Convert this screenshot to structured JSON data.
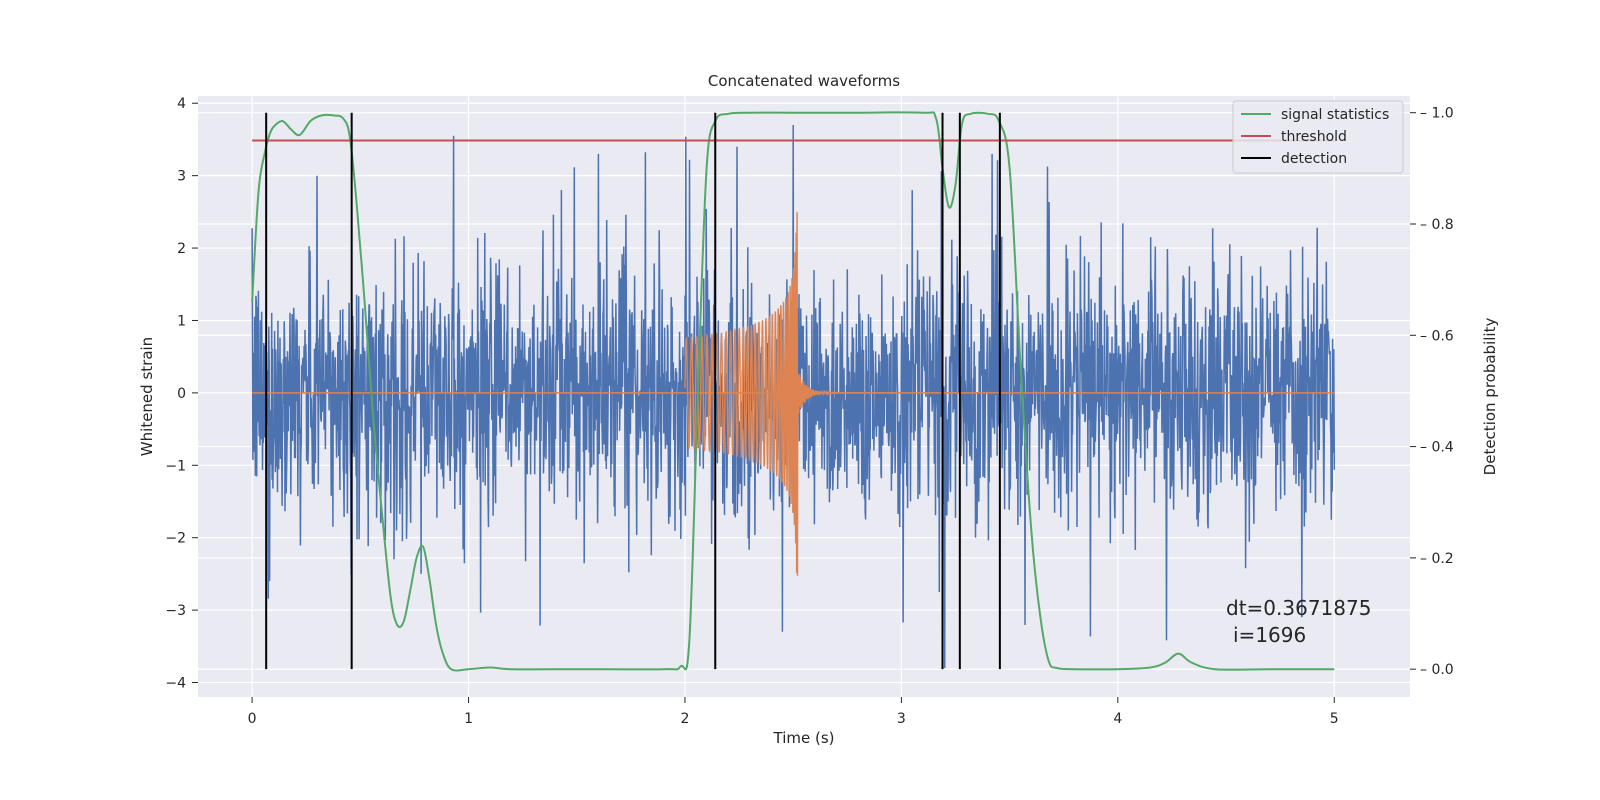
{
  "chart_data": {
    "type": "line",
    "title": "Concatenated waveforms",
    "xlabel": "Time (s)",
    "ylabel": "Whitened strain",
    "y2label": "Detection probability",
    "xlim": [
      -0.25,
      5.35
    ],
    "ylim": [
      -4.2,
      4.1
    ],
    "y2lim": [
      -0.05,
      1.03
    ],
    "xticks": [
      0,
      1,
      2,
      3,
      4,
      5
    ],
    "xtick_labels": [
      "0",
      "1",
      "2",
      "3",
      "4",
      "5"
    ],
    "yticks": [
      -4,
      -3,
      -2,
      -1,
      0,
      1,
      2,
      3,
      4
    ],
    "ytick_labels": [
      "−4",
      "−3",
      "−2",
      "−1",
      "0",
      "1",
      "2",
      "3",
      "4"
    ],
    "y2ticks": [
      0.0,
      0.2,
      0.4,
      0.6,
      0.8,
      1.0
    ],
    "y2tick_labels": [
      "0.0",
      "0.2",
      "0.4",
      "0.6",
      "0.8",
      "1.0"
    ],
    "grid": true,
    "legend_position": "top-right",
    "series": [
      {
        "name": "",
        "axis": "left",
        "color": "#4c72b0",
        "kind": "noise",
        "x_range": [
          0,
          5
        ],
        "amplitude": 1.05,
        "peaks": [
          [
            0.3,
            3.0
          ],
          [
            0.93,
            3.55
          ],
          [
            1.6,
            3.3
          ],
          [
            2.24,
            3.4
          ],
          [
            2.5,
            3.7
          ],
          [
            3.05,
            2.8
          ],
          [
            3.42,
            3.3
          ],
          [
            2.45,
            -3.3
          ],
          [
            3.2,
            -3.8
          ],
          [
            4.85,
            -3.1
          ],
          [
            0.08,
            -2.6
          ],
          [
            0.78,
            -2.5
          ]
        ]
      },
      {
        "name": "",
        "axis": "left",
        "color": "#dd8452",
        "kind": "chirp",
        "x_range": [
          2.0,
          2.52
        ],
        "start_amplitude": 0.75,
        "peak_amplitude": 2.75,
        "ringdown_end": 3.0
      },
      {
        "name": "signal statistics",
        "axis": "right",
        "color": "#55a868",
        "x": [
          0.0,
          0.03,
          0.06,
          0.08,
          0.1,
          0.14,
          0.18,
          0.22,
          0.27,
          0.32,
          0.38,
          0.42,
          0.45,
          0.48,
          0.52,
          0.56,
          0.6,
          0.64,
          0.67,
          0.7,
          0.73,
          0.76,
          0.79,
          0.82,
          0.85,
          0.88,
          0.92,
          1.0,
          1.1,
          1.2,
          1.5,
          1.9,
          1.98,
          2.02,
          2.06,
          2.1,
          2.14,
          2.2,
          2.3,
          2.5,
          2.8,
          3.1,
          3.16,
          3.19,
          3.22,
          3.25,
          3.28,
          3.32,
          3.4,
          3.45,
          3.5,
          3.55,
          3.6,
          3.64,
          3.68,
          3.72,
          3.8,
          4.0,
          4.15,
          4.22,
          4.28,
          4.34,
          4.45,
          4.7,
          5.0
        ],
        "y": [
          0.66,
          0.86,
          0.93,
          0.96,
          0.975,
          0.985,
          0.97,
          0.96,
          0.985,
          0.995,
          0.995,
          0.99,
          0.96,
          0.85,
          0.66,
          0.45,
          0.28,
          0.13,
          0.08,
          0.085,
          0.14,
          0.2,
          0.22,
          0.16,
          0.08,
          0.03,
          0.0,
          0.0,
          0.003,
          0.0,
          0.0,
          0.0,
          0.005,
          0.05,
          0.5,
          0.9,
          0.985,
          0.998,
          1.0,
          1.0,
          1.0,
          1.0,
          0.99,
          0.9,
          0.83,
          0.87,
          0.98,
          0.998,
          0.998,
          0.985,
          0.9,
          0.55,
          0.25,
          0.1,
          0.015,
          0.002,
          0.0,
          0.0,
          0.003,
          0.012,
          0.028,
          0.012,
          0.0,
          0.0,
          0.0
        ]
      },
      {
        "name": "threshold",
        "axis": "right",
        "color": "#c44e52",
        "x": [
          0,
          5
        ],
        "y": [
          0.95,
          0.95
        ]
      },
      {
        "name": "detection",
        "axis": "right",
        "color": "#000000",
        "vlines_x": [
          0.065,
          0.46,
          2.14,
          3.19,
          3.27,
          3.455
        ],
        "vline_ymin": 0.0,
        "vline_ymax": 1.0
      }
    ],
    "annotation": {
      "line1": "dt=0.3671875",
      "line2": "i=1696"
    }
  }
}
